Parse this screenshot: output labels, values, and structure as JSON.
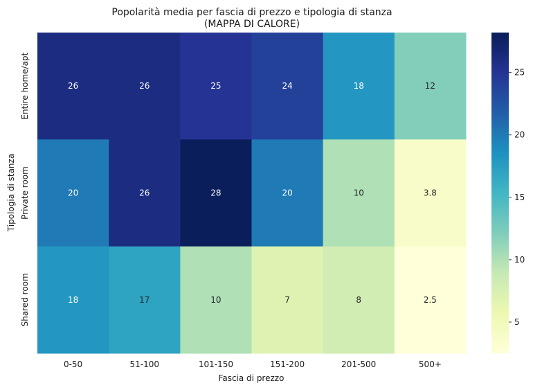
{
  "chart_data": {
    "type": "heatmap",
    "title": "Popolarità media per fascia di prezzo e tipologia di stanza",
    "subtitle": "(MAPPA DI CALORE)",
    "xlabel": "Fascia di prezzo",
    "ylabel": "Tipologia di stanza",
    "x_categories": [
      "0-50",
      "51-100",
      "101-150",
      "151-200",
      "201-500",
      "500+"
    ],
    "y_categories": [
      "Entire home/apt",
      "Private room",
      "Shared room"
    ],
    "values": [
      [
        26,
        26,
        25,
        24,
        18,
        12
      ],
      [
        20,
        26,
        28,
        20,
        10,
        3.8
      ],
      [
        18,
        17,
        10,
        7,
        8,
        2.5
      ]
    ],
    "cell_labels": [
      [
        "26",
        "26",
        "25",
        "24",
        "18",
        "12"
      ],
      [
        "20",
        "26",
        "28",
        "20",
        "10",
        "3.8"
      ],
      [
        "18",
        "17",
        "10",
        "7",
        "8",
        "2.5"
      ]
    ],
    "colorbar": {
      "vmin": 2.5,
      "vmax": 28.2,
      "ticks": [
        5,
        10,
        15,
        20,
        25
      ],
      "colormap": "YlGnBu"
    }
  }
}
